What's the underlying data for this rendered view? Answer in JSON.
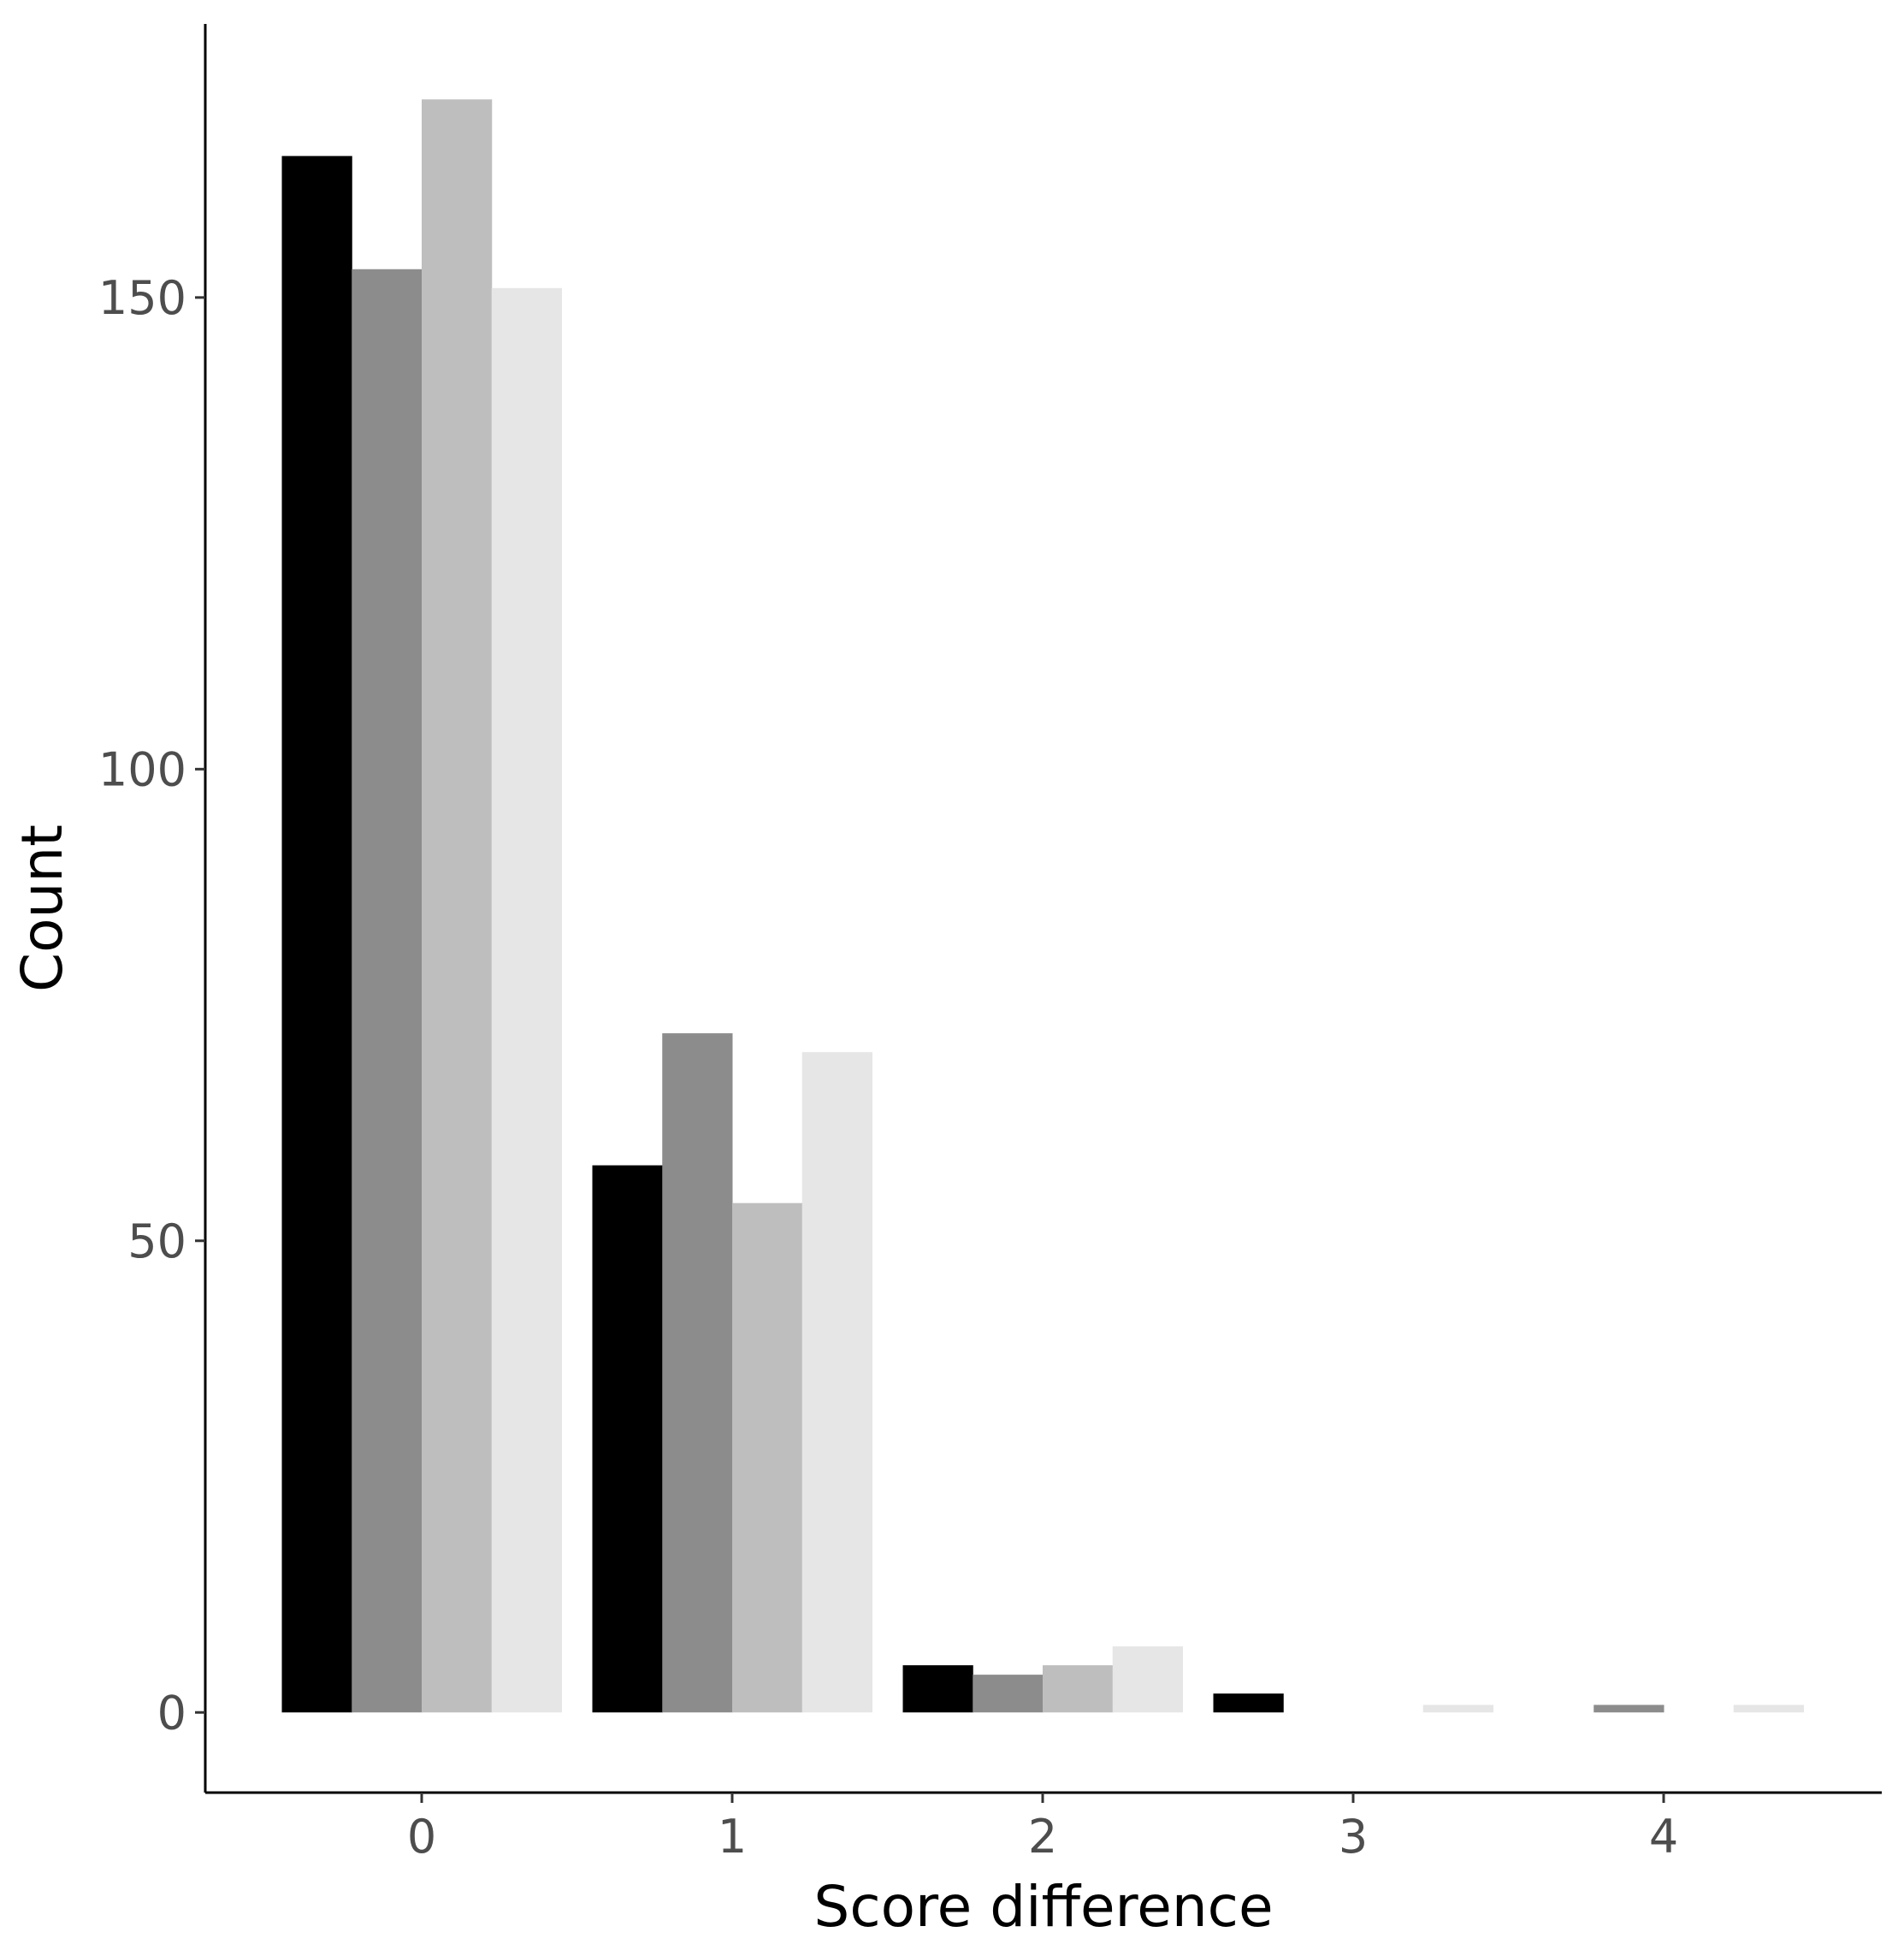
{
  "chart_data": {
    "type": "bar",
    "title": "",
    "xlabel": "Score difference",
    "ylabel": "Count",
    "categories": [
      "0",
      "1",
      "2",
      "3",
      "4"
    ],
    "yticks": [
      "0",
      "50",
      "100",
      "150"
    ],
    "ylim": [
      -8.5,
      179
    ],
    "grid": false,
    "legend": "none",
    "series": [
      {
        "color": "#000000",
        "values": [
          165,
          58,
          5,
          2,
          0
        ]
      },
      {
        "color": "#8c8c8c",
        "values": [
          153,
          72,
          4,
          0,
          0.8
        ]
      },
      {
        "color": "#bebebe",
        "values": [
          171,
          54,
          5,
          0,
          0
        ]
      },
      {
        "color": "#e6e6e6",
        "values": [
          151,
          70,
          7,
          0.8,
          0.8
        ]
      }
    ]
  }
}
